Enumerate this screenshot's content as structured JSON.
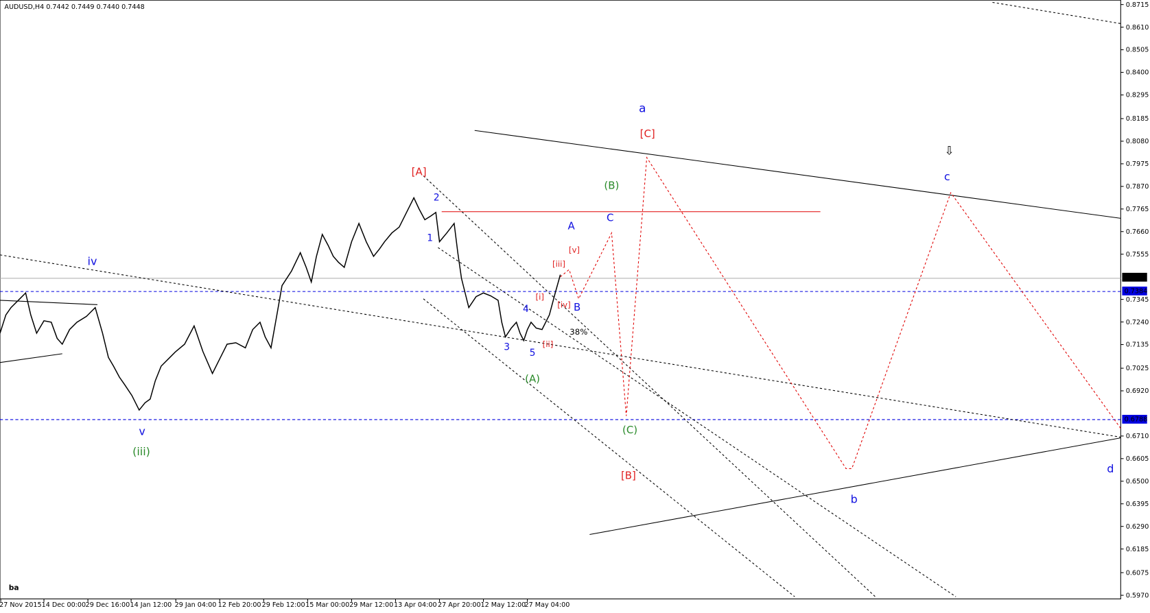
{
  "header": {
    "symbol_info": "AUDUSD,H4  0.7442 0.7449 0.7440 0.7448"
  },
  "corner_label": "ba",
  "y_axis": {
    "ticks": [
      "0.8715",
      "0.8610",
      "0.8505",
      "0.8400",
      "0.8295",
      "0.8185",
      "0.8080",
      "0.7975",
      "0.7870",
      "0.7765",
      "0.7660",
      "0.7555",
      "0.7345",
      "0.7240",
      "0.7135",
      "0.7025",
      "0.6920",
      "0.6710",
      "0.6605",
      "0.6500",
      "0.6395",
      "0.6290",
      "0.6185",
      "0.6075",
      "0.5970"
    ],
    "current_price": "0.7448",
    "levels": [
      "0.7384",
      "0.6788"
    ]
  },
  "x_axis": {
    "labels": [
      "27 Nov 2015",
      "14 Dec 00:00",
      "29 Dec 16:00",
      "14 Jan 12:00",
      "29 Jan 04:00",
      "12 Feb 20:00",
      "29 Feb 12:00",
      "15 Mar 00:00",
      "29 Mar 12:00",
      "13 Apr 04:00",
      "27 Apr 20:00",
      "12 May 12:00",
      "27 May 04:00"
    ]
  },
  "annotations": [
    "iv",
    "v",
    "(iii)",
    "a",
    "c",
    "d",
    "b",
    "A",
    "B",
    "C",
    "1",
    "2",
    "3",
    "4",
    "5",
    "(B)",
    "(A)",
    "(C)",
    "[A]",
    "[C]",
    "[B]",
    "[i]",
    "[ii]",
    "[iii]",
    "[iv]",
    "[v]",
    "38%",
    "⇩"
  ]
}
